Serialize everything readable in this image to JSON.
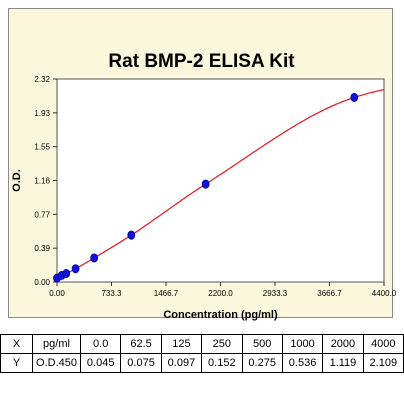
{
  "chart_data": {
    "type": "scatter",
    "title": "Rat BMP-2 ELISA Kit",
    "xlabel": "Concentration (pg/ml)",
    "ylabel": "O.D.",
    "xlim": [
      0,
      4400
    ],
    "ylim": [
      0,
      2.32
    ],
    "x_ticks": [
      "0.00",
      "733.3",
      "1466.7",
      "2200.0",
      "2933.3",
      "3666.7",
      "4400.0"
    ],
    "y_ticks": [
      "0.00",
      "0.39",
      "0.77",
      "1.16",
      "1.55",
      "1.93",
      "2.32"
    ],
    "x": [
      0,
      62.5,
      125,
      250,
      500,
      1000,
      2000,
      4000
    ],
    "y": [
      0.045,
      0.075,
      0.097,
      0.152,
      0.275,
      0.536,
      1.119,
      2.109
    ],
    "curve": "4-parameter fit",
    "point_color": "#1010dd",
    "curve_color": "#e8141c"
  },
  "table": {
    "rows": [
      {
        "label": "X",
        "unit": "pg/ml",
        "values": [
          "0.0",
          "62.5",
          "125",
          "250",
          "500",
          "1000",
          "2000",
          "4000"
        ]
      },
      {
        "label": "Y",
        "unit": "O.D.450",
        "values": [
          "0.045",
          "0.075",
          "0.097",
          "0.152",
          "0.275",
          "0.536",
          "1.119",
          "2.109"
        ]
      }
    ]
  }
}
